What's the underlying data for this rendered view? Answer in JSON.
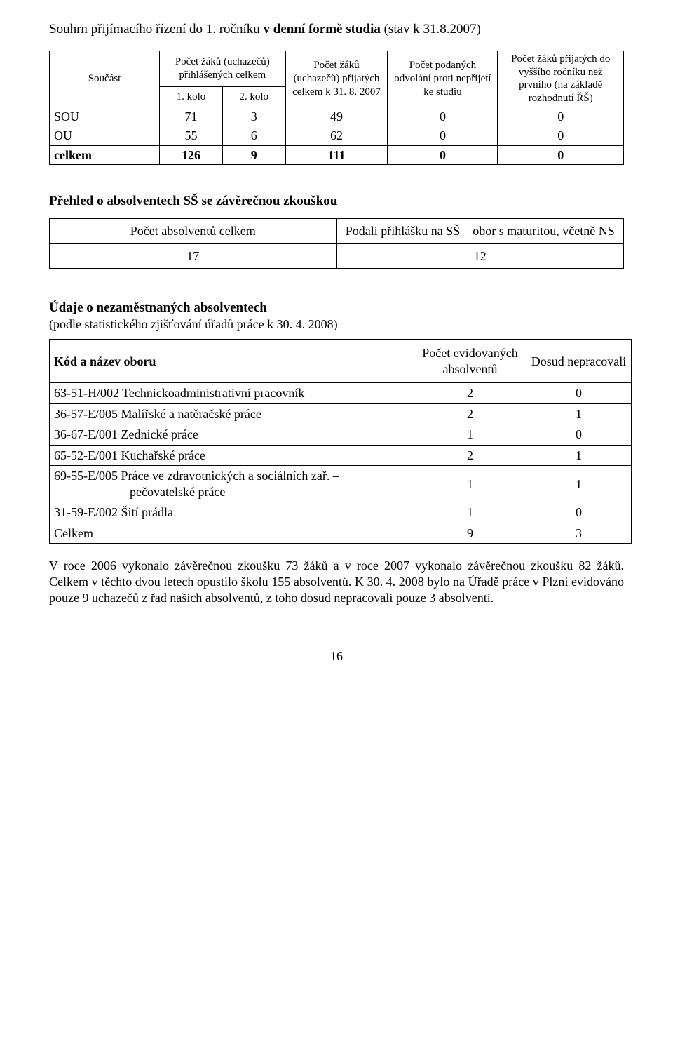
{
  "heading": {
    "prefix": "Souhrn přijímacího řízení do 1. ročníku",
    "bold1": " v ",
    "bold_under": "denní formě studia",
    "suffix": " (stav k 31.8.2007)"
  },
  "admission": {
    "headers": {
      "col1_row1": "Součást",
      "col2_row1": "Počet žáků (uchazečů) přihlášených celkem",
      "col2_row2a": "1. kolo",
      "col2_row2b": "2. kolo",
      "col3": "Počet žáků (uchazečů) přijatých celkem k 31. 8. 2007",
      "col4": "Počet podaných odvolání proti nepřijetí ke studiu",
      "col5": "Počet žáků přijatých do vyššího ročníku než prvního (na základě rozhodnutí ŘŠ)"
    },
    "rows": [
      {
        "label": "SOU",
        "k1": "71",
        "k2": "3",
        "c3": "49",
        "c4": "0",
        "c5": "0"
      },
      {
        "label": "OU",
        "k1": "55",
        "k2": "6",
        "c3": "62",
        "c4": "0",
        "c5": "0"
      },
      {
        "label": "celkem",
        "k1": "126",
        "k2": "9",
        "c3": "111",
        "c4": "0",
        "c5": "0",
        "bold": true
      }
    ]
  },
  "graduates_heading": "Přehled o absolventech SŠ se závěrečnou zkouškou",
  "graduates": {
    "headers": {
      "c1": "Počet absolventů celkem",
      "c2": "Podali přihlášku na SŠ – obor s maturitou, včetně NS"
    },
    "row": {
      "c1": "17",
      "c2": "12"
    }
  },
  "unemp_heading": "Údaje o nezaměstnaných absolventech",
  "unemp_sub": "(podle statistického zjišťování úřadů práce k 30. 4. 2008)",
  "unemployed": {
    "headers": {
      "c1": "Kód a název oboru",
      "c2": "Počet evidovaných absolventů",
      "c3": "Dosud nepracovali"
    },
    "rows": [
      {
        "c1": "63-51-H/002 Technickoadministrativní pracovník",
        "c2": "2",
        "c3": "0"
      },
      {
        "c1": "36-57-E/005  Malířské a natěračské práce",
        "c2": "2",
        "c3": "1"
      },
      {
        "c1": "36-67-E/001  Zednické práce",
        "c2": "1",
        "c3": "0"
      },
      {
        "c1": "65-52-E/001  Kuchařské práce",
        "c2": "2",
        "c3": "1"
      },
      {
        "c1": "69-55-E/005  Práce ve zdravotnických a sociálních zař. – pečovatelské práce",
        "c2": "1",
        "c3": "1",
        "two_line": true,
        "line1": "69-55-E/005  Práce ve zdravotnických a sociálních zař. –",
        "line2": "                        pečovatelské práce"
      },
      {
        "c1": "31-59-E/002  Šití prádla",
        "c2": "1",
        "c3": "0"
      },
      {
        "c1": "Celkem",
        "c2": "9",
        "c3": "3"
      }
    ]
  },
  "paragraph": "V roce 2006 vykonalo závěrečnou zkoušku 73 žáků a v roce 2007 vykonalo závěrečnou zkoušku 82 žáků. Celkem v těchto dvou letech opustilo školu 155  absolventů. K 30.  4. 2008 bylo na Úřadě práce v Plzni evidováno pouze 9 uchazečů z řad našich absolventů, z toho dosud nepracovali pouze 3 absolventi.",
  "page_number": "16",
  "colors": {
    "text": "#000000",
    "bg": "#ffffff",
    "border": "#000000"
  }
}
